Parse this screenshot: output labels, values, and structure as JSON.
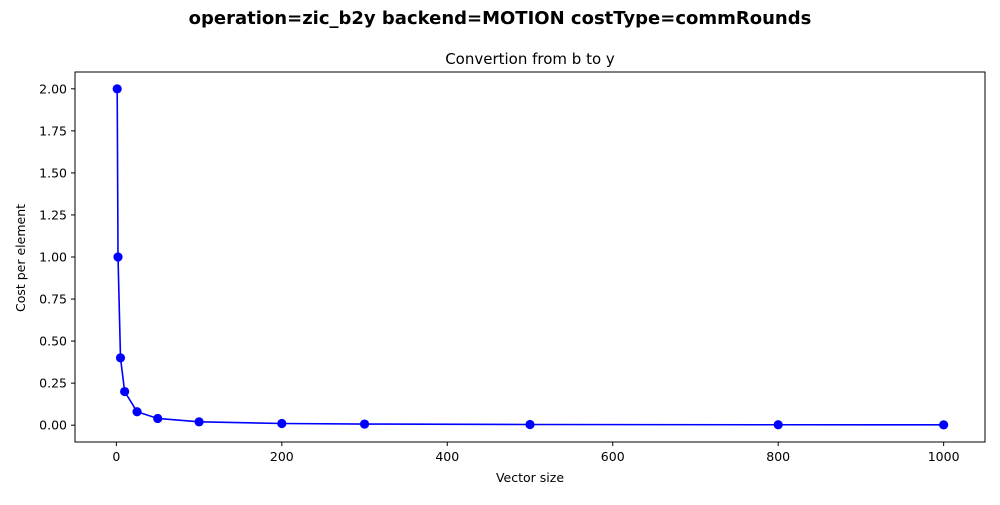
{
  "figure": {
    "suptitle": "operation=zic_b2y backend=MOTION costType=commRounds"
  },
  "chart_data": {
    "type": "line",
    "title": "Convertion from b to y",
    "xlabel": "Vector size",
    "ylabel": "Cost per element",
    "xlim": [
      -50,
      1050
    ],
    "ylim": [
      -0.1,
      2.1
    ],
    "xticks": [
      0,
      200,
      400,
      600,
      800,
      1000
    ],
    "yticks": [
      0.0,
      0.25,
      0.5,
      0.75,
      1.0,
      1.25,
      1.5,
      1.75,
      2.0
    ],
    "xtick_labels": [
      "0",
      "200",
      "400",
      "600",
      "800",
      "1000"
    ],
    "ytick_labels": [
      "0.00",
      "0.25",
      "0.50",
      "0.75",
      "1.00",
      "1.25",
      "1.50",
      "1.75",
      "2.00"
    ],
    "grid": false,
    "series": [
      {
        "color": "#0000ff",
        "marker": "circle",
        "x": [
          1,
          2,
          5,
          10,
          25,
          50,
          100,
          200,
          300,
          500,
          800,
          1000
        ],
        "y": [
          2.0,
          1.0,
          0.4,
          0.2,
          0.08,
          0.04,
          0.02,
          0.01,
          0.00667,
          0.004,
          0.0025,
          0.002
        ]
      }
    ]
  }
}
